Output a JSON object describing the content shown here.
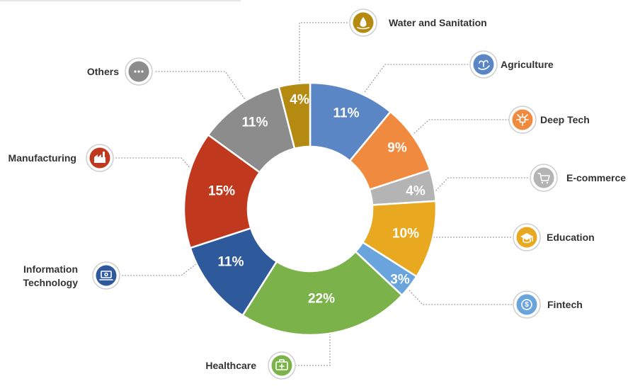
{
  "chart_data": {
    "type": "donut",
    "slices": [
      {
        "label": "Agriculture",
        "value": 11,
        "display": "11%",
        "color": "#5b86c6",
        "icon": "plant-in-hand-icon"
      },
      {
        "label": "Deep Tech",
        "value": 9,
        "display": "9%",
        "color": "#f08a3e",
        "icon": "chip-network-icon"
      },
      {
        "label": "E-commerce",
        "value": 4,
        "display": "4%",
        "color": "#b4b4b4",
        "icon": "shopping-cart-icon"
      },
      {
        "label": "Education",
        "value": 10,
        "display": "10%",
        "color": "#e8a81f",
        "icon": "graduation-cap-icon"
      },
      {
        "label": "Fintech",
        "value": 3,
        "display": "3%",
        "color": "#6aa4dc",
        "icon": "dollar-gear-icon"
      },
      {
        "label": "Healthcare",
        "value": 22,
        "display": "22%",
        "color": "#7bb249",
        "icon": "medical-kit-icon"
      },
      {
        "label": "Information Technology",
        "value": 11,
        "display": "11%",
        "color": "#2e5a9c",
        "icon": "laptop-gear-icon"
      },
      {
        "label": "Manufacturing",
        "value": 15,
        "display": "15%",
        "color": "#c0391f",
        "icon": "factory-icon"
      },
      {
        "label": "Others",
        "value": 11,
        "display": "11%",
        "color": "#8c8c8c",
        "icon": "more-dots-icon"
      },
      {
        "label": "Water and Sanitation",
        "value": 4,
        "display": "4%",
        "color": "#b58a10",
        "icon": "water-drop-icon"
      }
    ]
  }
}
